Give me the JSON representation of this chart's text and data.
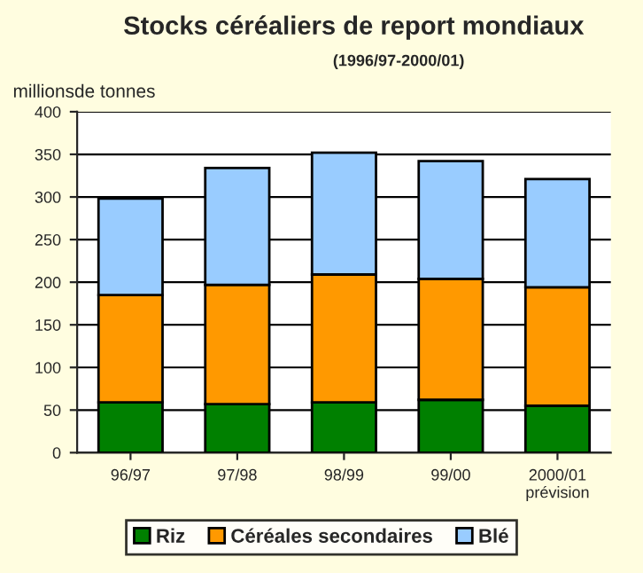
{
  "chart_data": {
    "type": "bar",
    "title": "Stocks céréaliers de report mondiaux",
    "subtitle": "(1996/97-2000/01)",
    "ylabel": "millionsde tonnes",
    "categories": [
      "96/97",
      "97/98",
      "98/99",
      "99/00",
      "2000/01\nprévision"
    ],
    "stacked": true,
    "ylim": [
      0,
      400
    ],
    "yticks": [
      0,
      50,
      100,
      150,
      200,
      250,
      300,
      350,
      400
    ],
    "grid": "y",
    "legend": "bottom",
    "series": [
      {
        "name": "Riz",
        "color": "#008000",
        "values": [
          59,
          57,
          59,
          62,
          55
        ]
      },
      {
        "name": "Céréales secondaires",
        "color": "#ff9900",
        "values": [
          126,
          140,
          150,
          142,
          139
        ]
      },
      {
        "name": "Blé",
        "color": "#99ccff",
        "values": [
          113,
          137,
          143,
          138,
          127
        ]
      }
    ]
  }
}
